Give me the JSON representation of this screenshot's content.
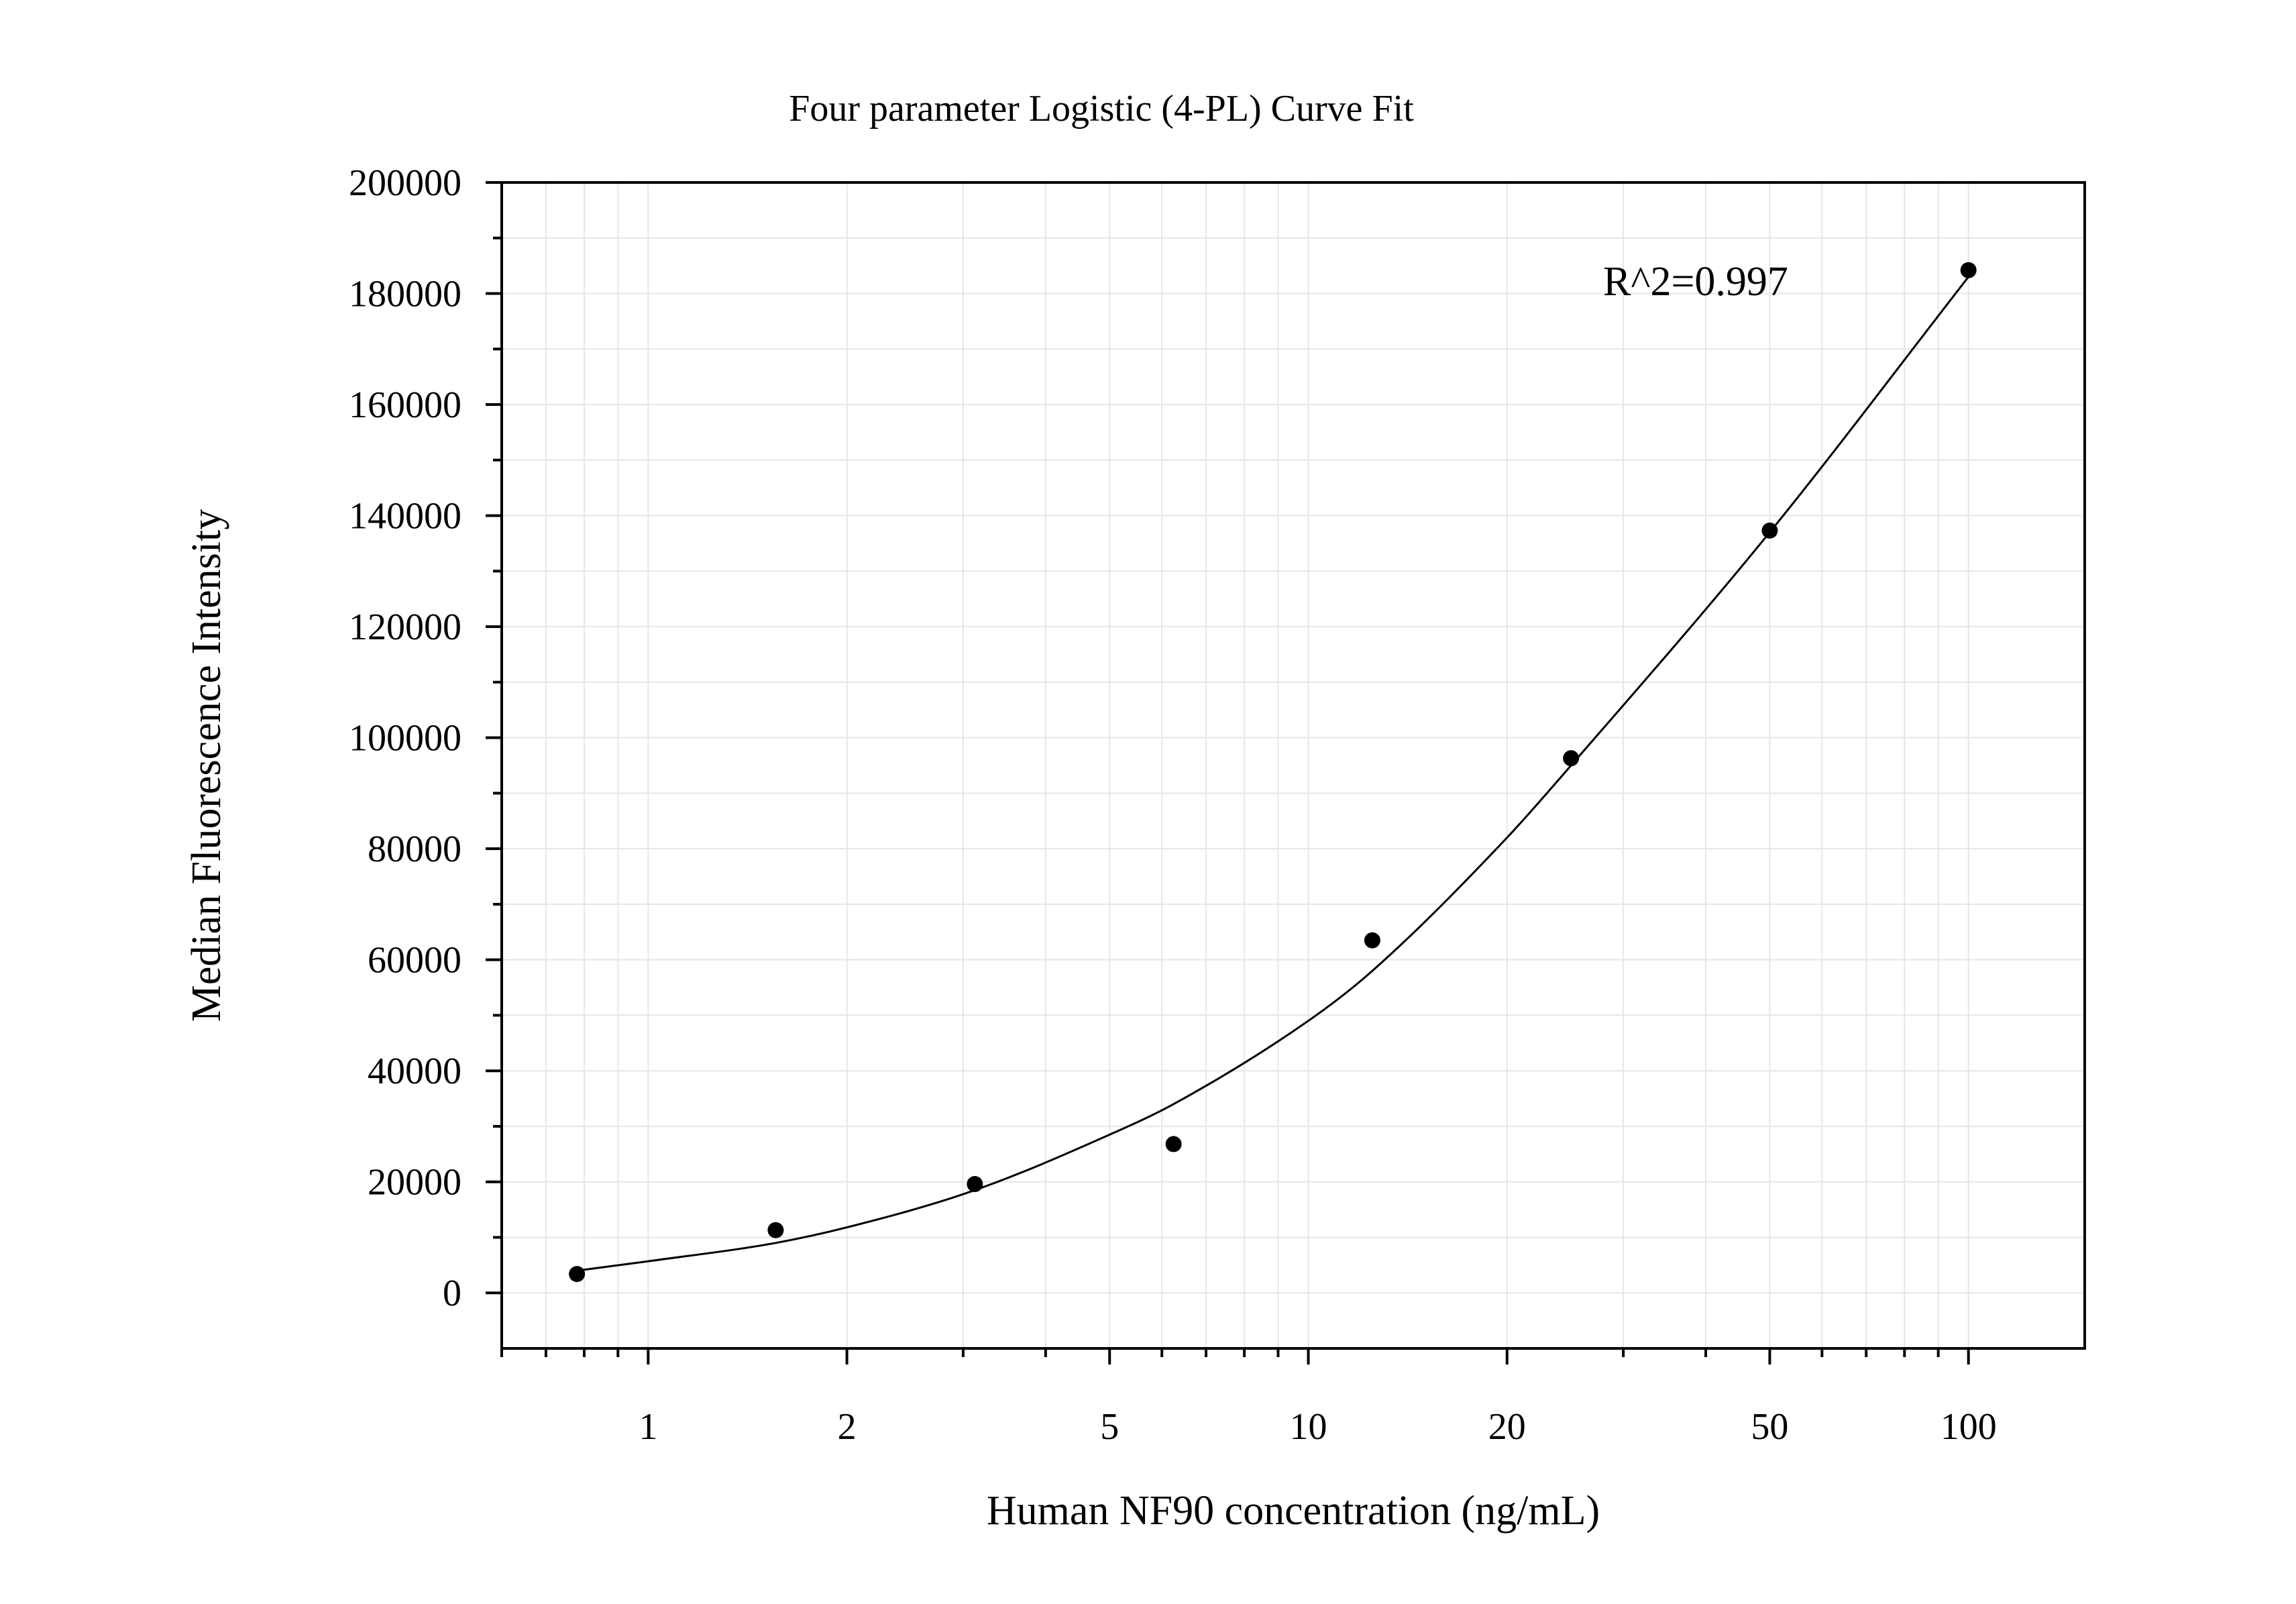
{
  "chart_data": {
    "type": "scatter",
    "title": "Four parameter Logistic (4-PL) Curve Fit",
    "xlabel": "Human NF90 concentration (ng/mL)",
    "ylabel": "Median Fluorescence Intensity",
    "x_scale": "log",
    "xlim": [
      0.6,
      150
    ],
    "ylim": [
      -10000,
      200000
    ],
    "x_ticks": [
      1,
      2,
      5,
      10,
      20,
      50,
      100
    ],
    "x_tick_labels": [
      "1",
      "2",
      "5",
      "10",
      "20",
      "50",
      "100"
    ],
    "y_ticks": [
      0,
      20000,
      40000,
      60000,
      80000,
      100000,
      120000,
      140000,
      160000,
      180000,
      200000
    ],
    "y_tick_labels": [
      "0",
      "20000",
      "40000",
      "60000",
      "80000",
      "100000",
      "120000",
      "140000",
      "160000",
      "180000",
      "200000"
    ],
    "grid": true,
    "annotation": "R^2=0.997",
    "series": [
      {
        "type": "scatter",
        "x": [
          0.78,
          1.56,
          3.125,
          6.25,
          12.5,
          25,
          50,
          100
        ],
        "y": [
          3400,
          11300,
          19600,
          26800,
          63500,
          96300,
          137300,
          184200
        ]
      },
      {
        "type": "line",
        "x": [
          0.78,
          1.0,
          1.56,
          2.0,
          3.125,
          5.0,
          6.25,
          10.0,
          12.5,
          20.0,
          25.0,
          50.0,
          100.0
        ],
        "y": [
          4000,
          5700,
          9000,
          11800,
          18500,
          28500,
          34000,
          49000,
          58000,
          82000,
          95000,
          137000,
          183000
        ]
      }
    ],
    "colors": {
      "axis": "#000000",
      "grid": "#e6e6e6",
      "points": "#000000",
      "curve": "#000000"
    }
  }
}
